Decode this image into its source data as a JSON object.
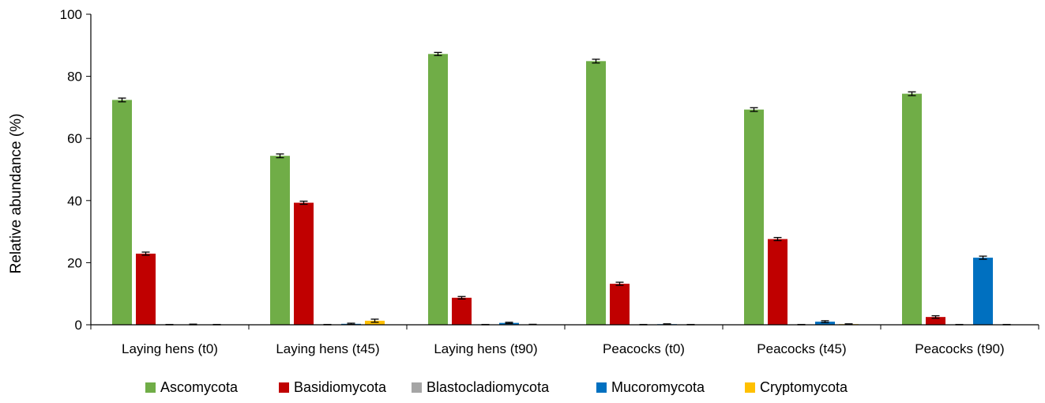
{
  "chart_data": {
    "type": "bar",
    "title": "",
    "xlabel": "",
    "ylabel": "Relative abundance (%)",
    "ylim": [
      0,
      100
    ],
    "yticks": [
      "0",
      "20",
      "40",
      "60",
      "80",
      "100"
    ],
    "grid": false,
    "legend_position": "bottom",
    "categories": [
      "Laying hens (t0)",
      "Laying hens (t45)",
      "Laying hens (t90)",
      "Peacocks (t0)",
      "Peacocks (t45)",
      "Peacocks (t90)"
    ],
    "series": [
      {
        "name": "Ascomycota",
        "color": "#70ad47",
        "values": [
          72.4,
          54.4,
          87.2,
          84.9,
          69.3,
          74.4
        ],
        "errors": [
          0.6,
          0.6,
          0.5,
          0.6,
          0.6,
          0.6
        ]
      },
      {
        "name": "Basidiomycota",
        "color": "#c00000",
        "values": [
          22.9,
          39.3,
          8.7,
          13.2,
          27.6,
          2.5
        ],
        "errors": [
          0.5,
          0.5,
          0.4,
          0.5,
          0.5,
          0.4
        ]
      },
      {
        "name": "Blastocladiomycota",
        "color": "#a5a5a5",
        "values": [
          0.05,
          0.05,
          0.05,
          0.05,
          0.05,
          0.05
        ],
        "errors": [
          0.05,
          0.05,
          0.05,
          0.05,
          0.05,
          0.05
        ]
      },
      {
        "name": "Mucoromycota",
        "color": "#0070c0",
        "values": [
          0.1,
          0.3,
          0.6,
          0.2,
          1.0,
          21.6
        ],
        "errors": [
          0.1,
          0.2,
          0.2,
          0.1,
          0.3,
          0.5
        ]
      },
      {
        "name": "Cryptomycota",
        "color": "#ffc000",
        "values": [
          0.05,
          1.3,
          0.1,
          0.05,
          0.2,
          0.05
        ],
        "errors": [
          0.05,
          0.5,
          0.05,
          0.05,
          0.1,
          0.05
        ]
      }
    ]
  }
}
